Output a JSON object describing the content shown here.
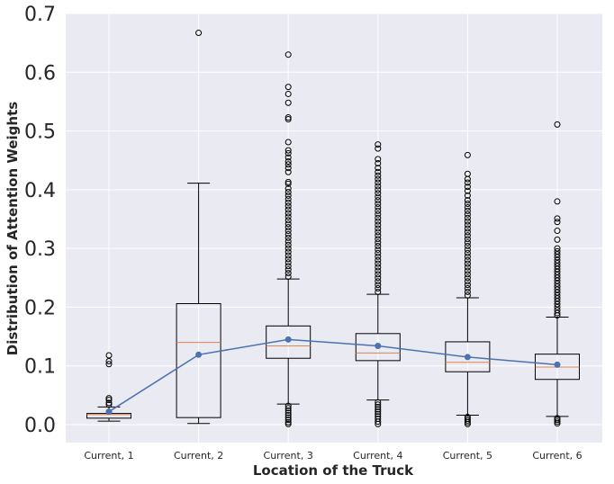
{
  "chart_data": {
    "type": "box",
    "title": "",
    "xlabel": "Location of the Truck",
    "ylabel": "Distribution of Attention Weights",
    "ylim": [
      -0.03,
      0.7
    ],
    "yticks": [
      0.0,
      0.1,
      0.2,
      0.3,
      0.4,
      0.5,
      0.6,
      0.7
    ],
    "ytick_labels": [
      "0.0",
      "0.1",
      "0.2",
      "0.3",
      "0.4",
      "0.5",
      "0.6",
      "0.7"
    ],
    "grid": true,
    "background_color": "#eaeaf2",
    "grid_color": "#ffffff",
    "box_color": "#000000",
    "median_color": "#dd8452",
    "mean_line_color": "#4c72b0",
    "categories": [
      "Current, 1",
      "Current, 2",
      "Current, 3",
      "Current, 4",
      "Current, 5",
      "Current, 6"
    ],
    "boxes": [
      {
        "whisker_low": 0.006,
        "q1": 0.011,
        "median": 0.017,
        "q3": 0.019,
        "whisker_high": 0.03,
        "outliers_high": [
          0.034,
          0.037,
          0.042,
          0.045,
          0.103,
          0.108,
          0.118
        ],
        "outliers_low": []
      },
      {
        "whisker_low": 0.002,
        "q1": 0.012,
        "median": 0.14,
        "q3": 0.206,
        "whisker_high": 0.411,
        "outliers_high": [
          0.667
        ],
        "outliers_low": []
      },
      {
        "whisker_low": 0.035,
        "q1": 0.113,
        "median": 0.134,
        "q3": 0.168,
        "whisker_high": 0.248,
        "outliers_high": [
          0.252,
          0.258,
          0.264,
          0.27,
          0.276,
          0.282,
          0.288,
          0.294,
          0.3,
          0.306,
          0.312,
          0.318,
          0.324,
          0.33,
          0.336,
          0.342,
          0.348,
          0.354,
          0.36,
          0.366,
          0.372,
          0.378,
          0.384,
          0.39,
          0.396,
          0.402,
          0.41,
          0.413,
          0.43,
          0.437,
          0.443,
          0.448,
          0.455,
          0.462,
          0.467,
          0.481,
          0.52,
          0.523,
          0.548,
          0.563,
          0.575,
          0.63
        ],
        "outliers_low": [
          0.032,
          0.028,
          0.024,
          0.02,
          0.016,
          0.012,
          0.008,
          0.004,
          0.001
        ]
      },
      {
        "whisker_low": 0.042,
        "q1": 0.109,
        "median": 0.122,
        "q3": 0.155,
        "whisker_high": 0.222,
        "outliers_high": [
          0.226,
          0.232,
          0.238,
          0.244,
          0.25,
          0.256,
          0.262,
          0.268,
          0.274,
          0.28,
          0.286,
          0.292,
          0.298,
          0.304,
          0.31,
          0.316,
          0.322,
          0.328,
          0.334,
          0.34,
          0.346,
          0.352,
          0.358,
          0.364,
          0.37,
          0.376,
          0.382,
          0.388,
          0.394,
          0.4,
          0.406,
          0.412,
          0.418,
          0.424,
          0.43,
          0.437,
          0.445,
          0.452,
          0.47,
          0.477
        ],
        "outliers_low": [
          0.038,
          0.034,
          0.03,
          0.026,
          0.022,
          0.018,
          0.014,
          0.01,
          0.005,
          0.001
        ]
      },
      {
        "whisker_low": 0.016,
        "q1": 0.09,
        "median": 0.106,
        "q3": 0.141,
        "whisker_high": 0.216,
        "outliers_high": [
          0.22,
          0.226,
          0.232,
          0.238,
          0.244,
          0.25,
          0.256,
          0.262,
          0.268,
          0.274,
          0.28,
          0.286,
          0.292,
          0.298,
          0.304,
          0.31,
          0.316,
          0.322,
          0.328,
          0.334,
          0.34,
          0.346,
          0.352,
          0.358,
          0.364,
          0.37,
          0.376,
          0.382,
          0.39,
          0.398,
          0.405,
          0.412,
          0.418,
          0.427,
          0.459
        ],
        "outliers_low": [
          0.013,
          0.01,
          0.007,
          0.004,
          0.001
        ]
      },
      {
        "whisker_low": 0.014,
        "q1": 0.077,
        "median": 0.098,
        "q3": 0.12,
        "whisker_high": 0.183,
        "outliers_high": [
          0.186,
          0.19,
          0.195,
          0.2,
          0.205,
          0.21,
          0.215,
          0.22,
          0.225,
          0.23,
          0.235,
          0.24,
          0.245,
          0.25,
          0.255,
          0.26,
          0.265,
          0.27,
          0.275,
          0.28,
          0.285,
          0.29,
          0.295,
          0.3,
          0.315,
          0.33,
          0.345,
          0.351,
          0.38,
          0.511
        ],
        "outliers_low": [
          0.011,
          0.008,
          0.005,
          0.002
        ]
      }
    ],
    "mean_series": {
      "values": [
        0.022,
        0.119,
        0.145,
        0.134,
        0.115,
        0.102
      ]
    }
  }
}
